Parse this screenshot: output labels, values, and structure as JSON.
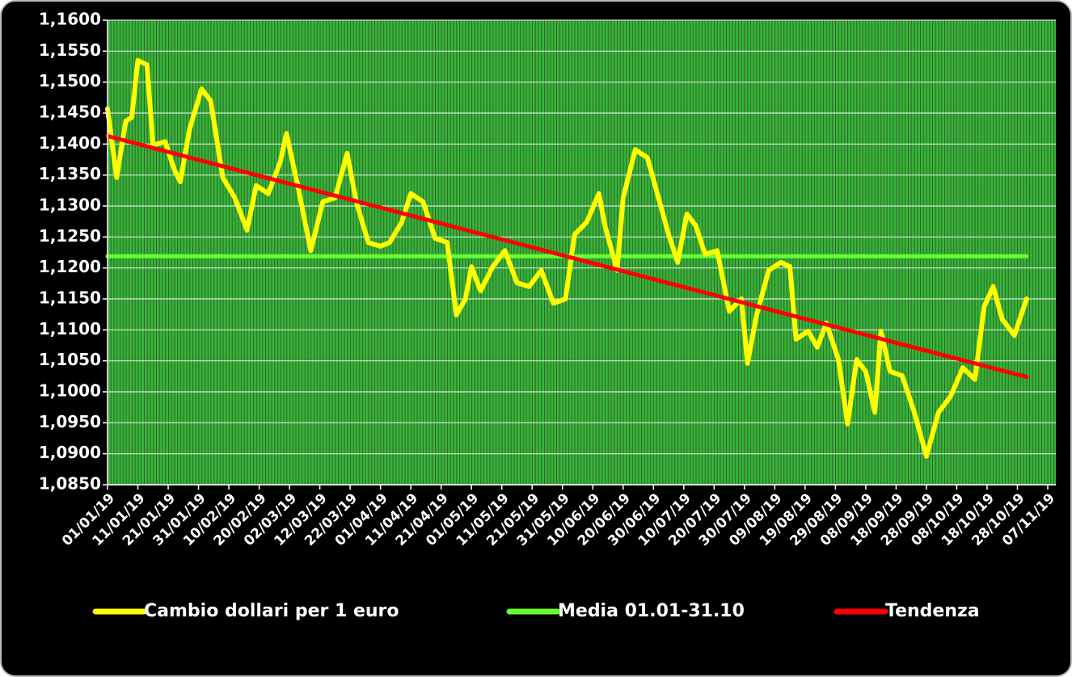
{
  "chart_data": {
    "type": "line",
    "series": [
      {
        "name": "Cambio dollari per 1 euro",
        "color": "#ffff00",
        "x": [
          "01/01/19",
          "04/01/19",
          "07/01/19",
          "09/01/19",
          "11/01/19",
          "14/01/19",
          "16/01/19",
          "20/01/19",
          "23/01/19",
          "25/01/19",
          "28/01/19",
          "01/02/19",
          "04/02/19",
          "08/02/19",
          "12/02/19",
          "16/02/19",
          "19/02/19",
          "23/02/19",
          "27/02/19",
          "01/03/19",
          "05/03/19",
          "09/03/19",
          "13/03/19",
          "17/03/19",
          "21/03/19",
          "24/03/19",
          "28/03/19",
          "01/04/19",
          "04/04/19",
          "08/04/19",
          "11/04/19",
          "15/04/19",
          "19/04/19",
          "23/04/19",
          "26/04/19",
          "29/04/19",
          "01/05/19",
          "04/05/19",
          "08/05/19",
          "12/05/19",
          "16/05/19",
          "20/05/19",
          "24/05/19",
          "28/05/19",
          "01/06/19",
          "04/06/19",
          "08/06/19",
          "12/06/19",
          "14/06/19",
          "18/06/19",
          "20/06/19",
          "24/06/19",
          "28/06/19",
          "02/07/19",
          "05/07/19",
          "08/07/19",
          "11/07/19",
          "14/07/19",
          "17/07/19",
          "21/07/19",
          "25/07/19",
          "29/07/19",
          "31/07/19",
          "03/08/19",
          "07/08/19",
          "11/08/19",
          "14/08/19",
          "16/08/19",
          "20/08/19",
          "23/08/19",
          "26/08/19",
          "30/08/19",
          "02/09/19",
          "05/09/19",
          "08/09/19",
          "11/09/19",
          "13/09/19",
          "16/09/19",
          "20/09/19",
          "24/09/19",
          "28/09/19",
          "02/10/19",
          "06/10/19",
          "10/10/19",
          "14/10/19",
          "17/10/19",
          "20/10/19",
          "23/10/19",
          "27/10/19",
          "31/10/19"
        ],
        "values": [
          1.1457,
          1.1346,
          1.1437,
          1.1443,
          1.1535,
          1.1528,
          1.1398,
          1.1404,
          1.1359,
          1.1339,
          1.1423,
          1.1489,
          1.147,
          1.1346,
          1.1313,
          1.1261,
          1.1333,
          1.132,
          1.1372,
          1.1417,
          1.1326,
          1.1228,
          1.1307,
          1.1313,
          1.1385,
          1.1307,
          1.1241,
          1.1235,
          1.1241,
          1.1274,
          1.132,
          1.1307,
          1.1248,
          1.1241,
          1.1124,
          1.115,
          1.1202,
          1.1163,
          1.1202,
          1.1228,
          1.1176,
          1.117,
          1.1196,
          1.1143,
          1.115,
          1.1254,
          1.1274,
          1.132,
          1.1268,
          1.1196,
          1.1313,
          1.1391,
          1.1378,
          1.1307,
          1.1254,
          1.1209,
          1.1287,
          1.1268,
          1.1222,
          1.1228,
          1.113,
          1.115,
          1.1046,
          1.1124,
          1.1196,
          1.1209,
          1.1202,
          1.1085,
          1.1098,
          1.1072,
          1.1111,
          1.1052,
          1.0948,
          1.1052,
          1.1033,
          1.0967,
          1.1098,
          1.1033,
          1.1026,
          1.0967,
          1.0896,
          1.0967,
          1.0993,
          1.1039,
          1.102,
          1.1137,
          1.117,
          1.1117,
          1.1091,
          1.115
        ]
      },
      {
        "name": "Media 01.01-31.10",
        "color": "#66ff33",
        "x": [
          "01/01/19",
          "31/10/19"
        ],
        "values": [
          1.1219,
          1.1219
        ]
      },
      {
        "name": "Tendenza",
        "color": "#ff0000",
        "x": [
          "01/01/19",
          "31/10/19"
        ],
        "values": [
          1.1413,
          1.1024
        ]
      }
    ],
    "xlim": [
      "01/01/19",
      "07/11/19"
    ],
    "xticks": [
      "01/01/19",
      "11/01/19",
      "21/01/19",
      "31/01/19",
      "10/02/19",
      "20/02/19",
      "02/03/19",
      "12/03/19",
      "22/03/19",
      "01/04/19",
      "11/04/19",
      "21/04/19",
      "01/05/19",
      "11/05/19",
      "21/05/19",
      "31/05/19",
      "10/06/19",
      "20/06/19",
      "30/06/19",
      "10/07/19",
      "20/07/19",
      "30/07/19",
      "09/08/19",
      "19/08/19",
      "29/08/19",
      "08/09/19",
      "18/09/19",
      "28/09/19",
      "08/10/19",
      "18/10/19",
      "28/10/19",
      "07/11/19"
    ],
    "ylim": [
      1.085,
      1.16
    ],
    "yticks": [
      {
        "value": 1.085,
        "label": "1,0850"
      },
      {
        "value": 1.09,
        "label": "1,0900"
      },
      {
        "value": 1.095,
        "label": "1,0950"
      },
      {
        "value": 1.1,
        "label": "1,1000"
      },
      {
        "value": 1.105,
        "label": "1,1050"
      },
      {
        "value": 1.11,
        "label": "1,1100"
      },
      {
        "value": 1.115,
        "label": "1,1150"
      },
      {
        "value": 1.12,
        "label": "1,1200"
      },
      {
        "value": 1.125,
        "label": "1,1250"
      },
      {
        "value": 1.13,
        "label": "1,1300"
      },
      {
        "value": 1.135,
        "label": "1,1350"
      },
      {
        "value": 1.14,
        "label": "1,1400"
      },
      {
        "value": 1.145,
        "label": "1,1450"
      },
      {
        "value": 1.15,
        "label": "1,1500"
      },
      {
        "value": 1.155,
        "label": "1,1550"
      },
      {
        "value": 1.16,
        "label": "1,1600"
      }
    ],
    "grid": true,
    "legend": "bottom"
  }
}
